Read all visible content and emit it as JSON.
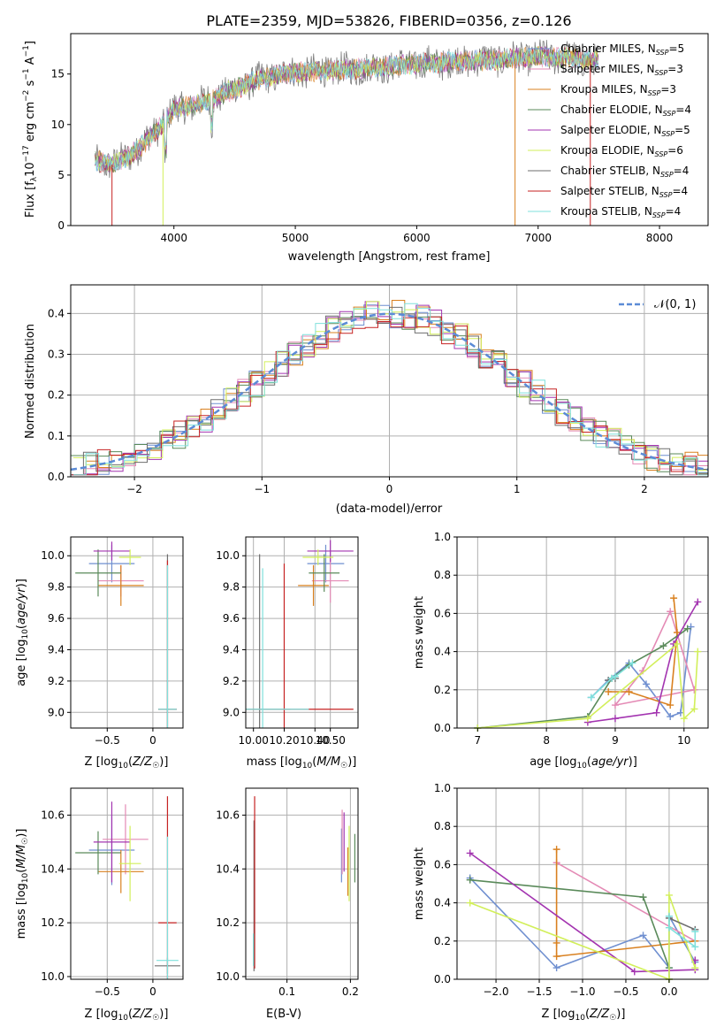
{
  "figure": {
    "title": "PLATE=2359, MJD=53826, FIBERID=0356, z=0.126"
  },
  "colors": {
    "chabrier_miles": "#6f8fd0",
    "salpeter_miles": "#e48ab5",
    "kroupa_miles": "#d9801f",
    "chabrier_elodie": "#5a8a5a",
    "salpeter_elodie": "#a334b0",
    "kroupa_elodie": "#d2ef5a",
    "chabrier_stelib": "#6e6e6e",
    "salpeter_stelib": "#c62222",
    "kroupa_stelib": "#7fe0dc",
    "gaussian": "#5b8bd6",
    "grid": "#b0b0b0"
  },
  "chart_data": [
    {
      "id": "spectrum",
      "type": "line",
      "xlabel": "wavelength [Angstrom, rest frame]",
      "ylabel": "Flux [f_λ 10^-17 erg cm^-2 s^-1 A^-1]",
      "xlim": [
        3150,
        8400
      ],
      "ylim": [
        0,
        19
      ],
      "xticks": [
        4000,
        5000,
        6000,
        7000,
        8000
      ],
      "yticks": [
        0,
        5,
        10,
        15
      ],
      "grid": false,
      "legend": "top-right",
      "legend_entries": [
        {
          "key": "chabrier_miles",
          "label": "Chabrier MILES, N",
          "sub": "SSP",
          "tail": "=5"
        },
        {
          "key": "salpeter_miles",
          "label": "Salpeter MILES, N",
          "sub": "SSP",
          "tail": "=3"
        },
        {
          "key": "kroupa_miles",
          "label": "Kroupa MILES, N",
          "sub": "SSP",
          "tail": "=3"
        },
        {
          "key": "chabrier_elodie",
          "label": "Chabrier ELODIE, N",
          "sub": "SSP",
          "tail": "=4"
        },
        {
          "key": "salpeter_elodie",
          "label": "Salpeter ELODIE, N",
          "sub": "SSP",
          "tail": "=5"
        },
        {
          "key": "kroupa_elodie",
          "label": "Kroupa ELODIE, N",
          "sub": "SSP",
          "tail": "=6"
        },
        {
          "key": "chabrier_stelib",
          "label": "Chabrier STELIB, N",
          "sub": "SSP",
          "tail": "=4"
        },
        {
          "key": "salpeter_stelib",
          "label": "Salpeter STELIB, N",
          "sub": "SSP",
          "tail": "=4"
        },
        {
          "key": "kroupa_stelib",
          "label": "Kroupa STELIB, N",
          "sub": "SSP",
          "tail": "=4"
        }
      ],
      "continuum": {
        "x": [
          3350,
          3500,
          3700,
          3900,
          4000,
          4200,
          4400,
          4600,
          4800,
          5000,
          5200,
          5500,
          5800,
          6000,
          6300,
          6600,
          7000,
          7300,
          7500
        ],
        "y": [
          6.5,
          6.0,
          7.5,
          10.0,
          11.5,
          12.0,
          13.0,
          14.0,
          14.8,
          15.2,
          15.3,
          15.5,
          15.8,
          16.0,
          16.2,
          16.4,
          16.7,
          16.6,
          16.2
        ]
      }
    },
    {
      "id": "residuals",
      "type": "line",
      "xlabel": "(data-model)/error",
      "ylabel": "Normed distribution",
      "xlim": [
        -2.5,
        2.5
      ],
      "ylim": [
        0,
        0.47
      ],
      "xticks": [
        -2,
        -1,
        0,
        1,
        2
      ],
      "yticks": [
        0.0,
        0.1,
        0.2,
        0.3,
        0.4
      ],
      "grid": true,
      "legend": "top-right",
      "legend_label": "𝒩(0, 1)",
      "gaussian": {
        "mu": 0,
        "sigma": 1
      }
    },
    {
      "id": "age_vs_Z",
      "type": "scatter",
      "xlabel": "Z [log10(Z/Z☉)]",
      "ylabel": "age [log10(age/yr)]",
      "xlim": [
        -0.9,
        0.33
      ],
      "ylim": [
        8.9,
        10.12
      ],
      "xticks": [
        -0.5,
        0.0
      ],
      "yticks": [
        9.0,
        9.2,
        9.4,
        9.6,
        9.8,
        10.0
      ],
      "grid": true,
      "points": [
        {
          "key": "chabrier_miles",
          "x": -0.45,
          "y": 9.95,
          "xerr": 0.25,
          "yerr": 0.12
        },
        {
          "key": "salpeter_miles",
          "x": -0.35,
          "y": 9.84,
          "xerr": 0.25,
          "yerr": 0.1
        },
        {
          "key": "kroupa_miles",
          "x": -0.35,
          "y": 9.81,
          "xerr": 0.25,
          "yerr": 0.13
        },
        {
          "key": "chabrier_elodie",
          "x": -0.6,
          "y": 9.89,
          "xerr": 0.25,
          "yerr": 0.15
        },
        {
          "key": "salpeter_elodie",
          "x": -0.45,
          "y": 10.03,
          "xerr": 0.2,
          "yerr": 0.06
        },
        {
          "key": "kroupa_elodie",
          "x": -0.25,
          "y": 9.99,
          "xerr": 0.12,
          "yerr": 0.05
        },
        {
          "key": "chabrier_stelib",
          "x": 0.16,
          "y": 9.02,
          "xerr": 0.1,
          "yerr": 0.99
        },
        {
          "key": "salpeter_stelib",
          "x": 0.16,
          "y": 9.02,
          "xerr": 0.1,
          "yerr": 0.95
        },
        {
          "key": "kroupa_stelib",
          "x": 0.16,
          "y": 9.02,
          "xerr": 0.1,
          "yerr": 0.92
        }
      ]
    },
    {
      "id": "age_vs_mass",
      "type": "scatter",
      "xlabel": "mass [log10(M/M☉)]",
      "ylabel": "",
      "xlim": [
        9.95,
        10.68
      ],
      "ylim": [
        8.9,
        10.12
      ],
      "xticks": [
        10.0,
        10.2,
        10.4,
        10.5
      ],
      "xtick_labels": [
        "10.00",
        "10.20",
        "10.40",
        "10.50"
      ],
      "yticks": [
        9.0,
        9.2,
        9.4,
        9.6,
        9.8,
        10.0
      ],
      "grid": true,
      "points": [
        {
          "key": "chabrier_miles",
          "x": 10.47,
          "y": 9.95,
          "xerr": 0.12,
          "yerr": 0.12
        },
        {
          "key": "salpeter_miles",
          "x": 10.5,
          "y": 9.84,
          "xerr": 0.12,
          "yerr": 0.14
        },
        {
          "key": "kroupa_miles",
          "x": 10.39,
          "y": 9.81,
          "xerr": 0.1,
          "yerr": 0.13
        },
        {
          "key": "chabrier_elodie",
          "x": 10.46,
          "y": 9.89,
          "xerr": 0.1,
          "yerr": 0.12
        },
        {
          "key": "salpeter_elodie",
          "x": 10.5,
          "y": 10.03,
          "xerr": 0.15,
          "yerr": 0.07
        },
        {
          "key": "kroupa_elodie",
          "x": 10.42,
          "y": 9.99,
          "xerr": 0.1,
          "yerr": 0.05
        },
        {
          "key": "chabrier_stelib",
          "x": 10.04,
          "y": 9.02,
          "xerr": 0.2,
          "yerr": 0.99
        },
        {
          "key": "salpeter_stelib",
          "x": 10.2,
          "y": 9.02,
          "xerr": 0.45,
          "yerr": 0.93
        },
        {
          "key": "kroupa_stelib",
          "x": 10.06,
          "y": 9.02,
          "xerr": 0.3,
          "yerr": 0.9
        }
      ]
    },
    {
      "id": "weight_vs_age",
      "type": "line",
      "xlabel": "age [log10(age/yr)]",
      "ylabel": "mass weight",
      "xlim": [
        6.7,
        10.35
      ],
      "ylim": [
        0,
        1.0
      ],
      "xticks": [
        7,
        8,
        9,
        10
      ],
      "yticks": [
        0.0,
        0.2,
        0.4,
        0.6,
        0.8,
        1.0
      ],
      "grid": true,
      "series": [
        {
          "key": "chabrier_miles",
          "x": [
            10.1,
            9.95,
            9.8,
            9.45,
            9.2,
            8.9,
            8.65
          ],
          "y": [
            0.53,
            0.08,
            0.06,
            0.23,
            0.34,
            0.25,
            0.16
          ]
        },
        {
          "key": "salpeter_miles",
          "x": [
            10.15,
            9.8,
            9.4,
            9.0,
            10.15
          ],
          "y": [
            0.2,
            0.61,
            0.3,
            0.12,
            0.2
          ]
        },
        {
          "key": "kroupa_miles",
          "x": [
            9.85,
            9.9,
            9.8,
            9.2,
            8.9
          ],
          "y": [
            0.68,
            0.5,
            0.12,
            0.19,
            0.19
          ]
        },
        {
          "key": "chabrier_elodie",
          "x": [
            10.05,
            9.7,
            9.2,
            8.95,
            8.6,
            7.0
          ],
          "y": [
            0.52,
            0.43,
            0.33,
            0.26,
            0.06,
            0.0
          ]
        },
        {
          "key": "salpeter_elodie",
          "x": [
            10.2,
            9.85,
            9.6,
            9.0,
            8.6
          ],
          "y": [
            0.66,
            0.44,
            0.08,
            0.05,
            0.03
          ]
        },
        {
          "key": "kroupa_elodie",
          "x": [
            10.2,
            10.15,
            10.0,
            9.9,
            8.6,
            7.0
          ],
          "y": [
            0.4,
            0.1,
            0.05,
            0.44,
            0.05,
            0.0
          ]
        },
        {
          "key": "chabrier_stelib",
          "x": [
            9.0,
            8.9
          ],
          "y": [
            0.26,
            0.25
          ]
        },
        {
          "key": "kroupa_stelib",
          "x": [
            9.25,
            9.0,
            8.95,
            8.65
          ],
          "y": [
            0.34,
            0.27,
            0.26,
            0.16
          ]
        }
      ]
    },
    {
      "id": "mass_vs_Z",
      "type": "scatter",
      "xlabel": "Z [log10(Z/Z☉)]",
      "ylabel": "mass [log10(M/M☉)]",
      "xlim": [
        -0.9,
        0.33
      ],
      "ylim": [
        9.99,
        10.7
      ],
      "xticks": [
        -0.5,
        0.0
      ],
      "yticks": [
        10.0,
        10.2,
        10.4,
        10.6
      ],
      "grid": true,
      "points": [
        {
          "key": "chabrier_miles",
          "x": -0.45,
          "y": 10.47,
          "xerr": 0.25,
          "yerr": 0.13
        },
        {
          "key": "salpeter_miles",
          "x": -0.3,
          "y": 10.51,
          "xerr": 0.25,
          "yerr": 0.13
        },
        {
          "key": "kroupa_miles",
          "x": -0.35,
          "y": 10.39,
          "xerr": 0.25,
          "yerr": 0.08
        },
        {
          "key": "chabrier_elodie",
          "x": -0.6,
          "y": 10.46,
          "xerr": 0.25,
          "yerr": 0.08
        },
        {
          "key": "salpeter_elodie",
          "x": -0.45,
          "y": 10.5,
          "xerr": 0.2,
          "yerr": 0.15
        },
        {
          "key": "kroupa_elodie",
          "x": -0.25,
          "y": 10.42,
          "xerr": 0.12,
          "yerr": 0.14
        },
        {
          "key": "chabrier_stelib",
          "x": 0.16,
          "y": 10.04,
          "xerr": 0.14,
          "yerr": 0.03
        },
        {
          "key": "salpeter_stelib",
          "x": 0.16,
          "y": 10.2,
          "xerr": 0.1,
          "yerr": 0.47
        },
        {
          "key": "kroupa_stelib",
          "x": 0.16,
          "y": 10.06,
          "xerr": 0.12,
          "yerr": 0.46
        }
      ]
    },
    {
      "id": "mass_vs_ebv",
      "type": "scatter",
      "xlabel": "E(B-V)",
      "ylabel": "",
      "xlim": [
        0.035,
        0.212
      ],
      "ylim": [
        9.99,
        10.7
      ],
      "xticks": [
        0.1,
        0.2
      ],
      "yticks": [
        10.0,
        10.2,
        10.4,
        10.6
      ],
      "grid": true,
      "points": [
        {
          "key": "chabrier_miles",
          "x": 0.186,
          "y": 10.45,
          "xerr": 0,
          "yerr": 0.1
        },
        {
          "key": "salpeter_miles",
          "x": 0.187,
          "y": 10.5,
          "xerr": 0,
          "yerr": 0.12
        },
        {
          "key": "kroupa_miles",
          "x": 0.196,
          "y": 10.39,
          "xerr": 0,
          "yerr": 0.09
        },
        {
          "key": "chabrier_elodie",
          "x": 0.207,
          "y": 10.44,
          "xerr": 0,
          "yerr": 0.09
        },
        {
          "key": "salpeter_elodie",
          "x": 0.19,
          "y": 10.5,
          "xerr": 0,
          "yerr": 0.11
        },
        {
          "key": "kroupa_elodie",
          "x": 0.198,
          "y": 10.42,
          "xerr": 0,
          "yerr": 0.14
        },
        {
          "key": "chabrier_stelib",
          "x": 0.048,
          "y": 10.3,
          "xerr": 0,
          "yerr": 0.28
        },
        {
          "key": "salpeter_stelib",
          "x": 0.049,
          "y": 10.35,
          "xerr": 0,
          "yerr": 0.32
        },
        {
          "key": "kroupa_stelib",
          "x": 0.047,
          "y": 10.1,
          "xerr": 0,
          "yerr": 0.06
        }
      ]
    },
    {
      "id": "weight_vs_Z",
      "type": "line",
      "xlabel": "Z [log10(Z/Z☉)]",
      "ylabel": "mass weight",
      "xlim": [
        -2.45,
        0.45
      ],
      "ylim": [
        0,
        1.0
      ],
      "xticks": [
        -2.0,
        -1.5,
        -1.0,
        -0.5,
        0.0
      ],
      "yticks": [
        0.0,
        0.2,
        0.4,
        0.6,
        0.8,
        1.0
      ],
      "grid": true,
      "series": [
        {
          "key": "chabrier_miles",
          "x": [
            -2.3,
            -1.3,
            -0.3,
            0.0,
            0.0,
            0.3
          ],
          "y": [
            0.53,
            0.06,
            0.23,
            0.06,
            0.33,
            0.09
          ]
        },
        {
          "key": "salpeter_miles",
          "x": [
            -1.3,
            0.3
          ],
          "y": [
            0.61,
            0.2
          ]
        },
        {
          "key": "kroupa_miles",
          "x": [
            -1.3,
            -1.3,
            -1.3,
            0.3
          ],
          "y": [
            0.68,
            0.19,
            0.12,
            0.2
          ]
        },
        {
          "key": "chabrier_elodie",
          "x": [
            -2.3,
            -0.3,
            0.0,
            0.0
          ],
          "y": [
            0.52,
            0.43,
            0.06,
            0.0
          ]
        },
        {
          "key": "salpeter_elodie",
          "x": [
            -2.3,
            -0.4,
            0.3,
            0.3
          ],
          "y": [
            0.66,
            0.04,
            0.05,
            0.1
          ]
        },
        {
          "key": "kroupa_elodie",
          "x": [
            -2.3,
            0.0,
            0.0,
            0.3
          ],
          "y": [
            0.4,
            0.0,
            0.44,
            0.06
          ]
        },
        {
          "key": "chabrier_stelib",
          "x": [
            0.0,
            0.3
          ],
          "y": [
            0.32,
            0.26
          ]
        },
        {
          "key": "kroupa_stelib",
          "x": [
            0.0,
            0.0,
            0.3,
            0.3
          ],
          "y": [
            0.33,
            0.27,
            0.17,
            0.25
          ]
        }
      ]
    }
  ]
}
